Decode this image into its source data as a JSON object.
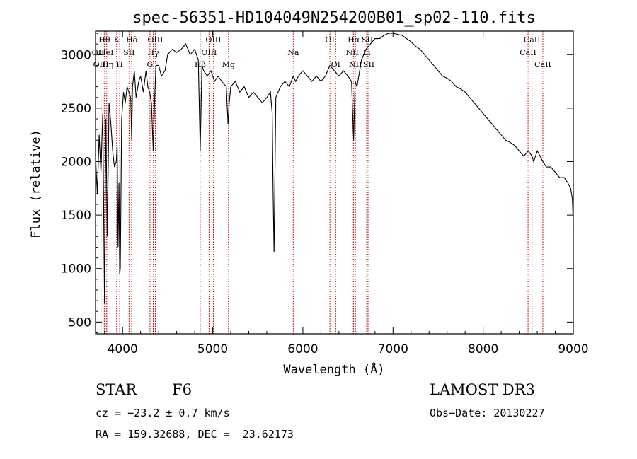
{
  "chart_data": {
    "type": "line",
    "title": "spec-56351-HD104049N254200B01_sp02-110.fits",
    "xlabel": "Wavelength (Å)",
    "ylabel": "Flux (relative)",
    "xlim": [
      3700,
      9000
    ],
    "ylim": [
      390,
      3220
    ],
    "xticks": [
      4000,
      5000,
      6000,
      7000,
      8000,
      9000
    ],
    "yticks": [
      500,
      1000,
      1500,
      2000,
      2500,
      3000
    ],
    "series": [
      {
        "name": "flux",
        "x": [
          3700,
          3720,
          3740,
          3760,
          3780,
          3800,
          3815,
          3830,
          3850,
          3870,
          3890,
          3910,
          3930,
          3940,
          3950,
          3960,
          3968,
          3975,
          3990,
          4010,
          4030,
          4050,
          4070,
          4090,
          4101,
          4110,
          4130,
          4150,
          4180,
          4200,
          4230,
          4260,
          4280,
          4300,
          4320,
          4340,
          4355,
          4370,
          4400,
          4430,
          4470,
          4500,
          4550,
          4600,
          4650,
          4700,
          4750,
          4800,
          4840,
          4861,
          4880,
          4900,
          4940,
          4980,
          5020,
          5060,
          5100,
          5150,
          5170,
          5183,
          5200,
          5250,
          5300,
          5350,
          5400,
          5450,
          5500,
          5550,
          5600,
          5640,
          5660,
          5670,
          5680,
          5700,
          5750,
          5800,
          5850,
          5893,
          5920,
          5950,
          6000,
          6050,
          6100,
          6150,
          6200,
          6250,
          6300,
          6350,
          6400,
          6450,
          6500,
          6540,
          6563,
          6580,
          6600,
          6620,
          6650,
          6700,
          6750,
          6800,
          6850,
          6900,
          6950,
          7000,
          7050,
          7100,
          7150,
          7200,
          7250,
          7300,
          7350,
          7400,
          7450,
          7500,
          7550,
          7600,
          7650,
          7700,
          7750,
          7800,
          7850,
          7900,
          7950,
          8000,
          8050,
          8100,
          8150,
          8200,
          8250,
          8300,
          8350,
          8400,
          8450,
          8500,
          8542,
          8560,
          8600,
          8662,
          8700,
          8750,
          8800,
          8850,
          8900,
          8940,
          8970,
          8990,
          9000
        ],
        "y": [
          2050,
          1700,
          2250,
          1900,
          2450,
          680,
          2400,
          1300,
          2550,
          2350,
          2100,
          1950,
          2000,
          2150,
          1200,
          1800,
          950,
          1000,
          2400,
          2650,
          2550,
          2700,
          2650,
          2600,
          2200,
          2700,
          2850,
          2600,
          2750,
          2800,
          2650,
          2850,
          2700,
          2650,
          2550,
          2100,
          2550,
          2900,
          2900,
          2800,
          2850,
          3000,
          3050,
          3020,
          3050,
          3100,
          3000,
          3050,
          2950,
          2100,
          2900,
          2850,
          2800,
          2850,
          2750,
          2800,
          2750,
          2700,
          2350,
          2550,
          2700,
          2750,
          2650,
          2700,
          2600,
          2650,
          2600,
          2550,
          2600,
          2650,
          2450,
          1700,
          1150,
          2600,
          2700,
          2750,
          2700,
          2800,
          2750,
          2800,
          2850,
          2800,
          2750,
          2800,
          2750,
          2800,
          2900,
          2850,
          2800,
          2850,
          2800,
          2750,
          2200,
          2750,
          2700,
          2800,
          2950,
          3050,
          3100,
          3150,
          3150,
          3180,
          3200,
          3200,
          3190,
          3180,
          3150,
          3120,
          3080,
          3050,
          3000,
          2950,
          2900,
          2850,
          2800,
          2780,
          2750,
          2700,
          2680,
          2650,
          2600,
          2550,
          2500,
          2450,
          2400,
          2350,
          2300,
          2250,
          2200,
          2180,
          2150,
          2100,
          2050,
          2100,
          2050,
          2000,
          2100,
          2000,
          1950,
          1950,
          1900,
          1850,
          1850,
          1800,
          1750,
          1650,
          1400
        ]
      }
    ],
    "line_markers": [
      {
        "label": "Hθ",
        "x": 3797,
        "row": 0
      },
      {
        "label": "OII",
        "x": 3727,
        "row": 1
      },
      {
        "label": "OIII",
        "x": 3760,
        "row": 2
      },
      {
        "label": "HeI",
        "x": 3820,
        "row": 1
      },
      {
        "label": "Hη",
        "x": 3835,
        "row": 2
      },
      {
        "label": "K",
        "x": 3934,
        "row": 0
      },
      {
        "label": "H",
        "x": 3968,
        "row": 2
      },
      {
        "label": "Hδ",
        "x": 4101,
        "row": 0
      },
      {
        "label": "SII",
        "x": 4072,
        "row": 1
      },
      {
        "label": "OIII",
        "x": 4363,
        "row": 0
      },
      {
        "label": "Hγ",
        "x": 4340,
        "row": 1
      },
      {
        "label": "G",
        "x": 4304,
        "row": 2
      },
      {
        "label": "OIII",
        "x": 5007,
        "row": 0
      },
      {
        "label": "OIII",
        "x": 4959,
        "row": 1
      },
      {
        "label": "Hβ",
        "x": 4861,
        "row": 2
      },
      {
        "label": "Mg",
        "x": 5175,
        "row": 2
      },
      {
        "label": "Na",
        "x": 5893,
        "row": 1
      },
      {
        "label": "OI",
        "x": 6300,
        "row": 0
      },
      {
        "label": "OI",
        "x": 6364,
        "row": 2
      },
      {
        "label": "Hα",
        "x": 6563,
        "row": 0
      },
      {
        "label": "NII",
        "x": 6548,
        "row": 1
      },
      {
        "label": "NII",
        "x": 6583,
        "row": 2
      },
      {
        "label": "SII",
        "x": 6716,
        "row": 0
      },
      {
        "label": "Li",
        "x": 6708,
        "row": 1
      },
      {
        "label": "SII",
        "x": 6731,
        "row": 2
      },
      {
        "label": "CaII",
        "x": 8542,
        "row": 0
      },
      {
        "label": "CaII",
        "x": 8498,
        "row": 1
      },
      {
        "label": "CaII",
        "x": 8662,
        "row": 2
      }
    ]
  },
  "info": {
    "object_type": "STAR",
    "subclass": "F6",
    "survey": "LAMOST DR3",
    "cz": "cz = −23.2 ± 0.7 km/s",
    "obs_date": "Obs−Date: 20130227",
    "coords": "RA = 159.32688, DEC =  23.62173"
  },
  "colors": {
    "spectrum": "#000000",
    "marker_line": "#b00000",
    "axis": "#000000"
  }
}
